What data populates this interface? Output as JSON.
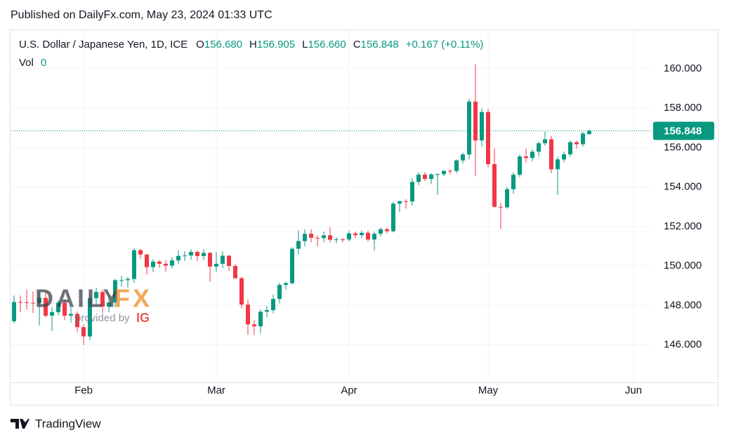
{
  "published": "Published on DailyFx.com, May 23, 2024 01:33 UTC",
  "footer": "TradingView",
  "watermark": {
    "brand_a": "DAILY",
    "brand_b": "FX",
    "provided": "provided by",
    "ig": "IG"
  },
  "chart_data": {
    "type": "candlestick",
    "legend": {
      "symbol": "U.S. Dollar / Japanese Yen, 1D, ICE",
      "o_label": "O",
      "o": "156.680",
      "h_label": "H",
      "h": "156.905",
      "l_label": "L",
      "l": "156.660",
      "c_label": "C",
      "c": "156.848",
      "change": "+0.167 (+0.11%)",
      "vol_label": "Vol",
      "vol": "0"
    },
    "up_color": "#089981",
    "down_color": "#f23645",
    "categories": [
      null,
      null,
      null,
      null,
      null,
      null,
      null,
      null,
      null,
      null,
      null,
      "Feb",
      null,
      null,
      null,
      null,
      null,
      null,
      null,
      null,
      null,
      null,
      null,
      null,
      null,
      null,
      null,
      null,
      null,
      null,
      null,
      null,
      "Mar",
      null,
      null,
      null,
      null,
      null,
      null,
      null,
      null,
      null,
      null,
      null,
      null,
      null,
      null,
      null,
      null,
      null,
      null,
      null,
      null,
      "Apr",
      null,
      null,
      null,
      null,
      null,
      null,
      null,
      null,
      null,
      null,
      null,
      null,
      null,
      null,
      null,
      null,
      null,
      null,
      null,
      null,
      null,
      "May",
      null,
      null,
      null,
      null,
      null,
      null,
      null,
      null,
      null,
      null,
      null,
      null,
      null,
      null,
      null,
      null,
      null,
      null,
      null,
      null,
      null,
      null,
      "Jun"
    ],
    "open": [
      147.2,
      148.17,
      148.16,
      148.13,
      148.12,
      148.38,
      147.48,
      147.66,
      148.14,
      147.48,
      147.57,
      146.9,
      146.43,
      148.37,
      148.68,
      147.94,
      148.15,
      149.28,
      149.28,
      149.34,
      150.8,
      150.58,
      149.94,
      150.22,
      150.11,
      150.02,
      150.28,
      150.51,
      150.53,
      150.71,
      150.5,
      150.66,
      149.97,
      150.11,
      150.52,
      150.0,
      149.38,
      148.04,
      147.04,
      146.94,
      147.68,
      147.76,
      148.33,
      149.04,
      149.13,
      150.87,
      151.26,
      151.63,
      151.43,
      151.41,
      151.55,
      151.33,
      151.35,
      151.34,
      151.65,
      151.56,
      151.68,
      151.34,
      151.63,
      151.86,
      151.76,
      153.16,
      153.28,
      153.27,
      154.26,
      154.63,
      154.41,
      154.64,
      154.65,
      154.82,
      154.81,
      155.35,
      155.65,
      158.33,
      156.36,
      157.8,
      155.16,
      153.0,
      152.97,
      153.89,
      154.62,
      155.55,
      155.47,
      155.79,
      156.22,
      156.42,
      154.9,
      155.4,
      155.66,
      156.27,
      156.17,
      156.68,
      null,
      null,
      null,
      null,
      null,
      null,
      null
    ],
    "high": [
      148.5,
      148.5,
      148.8,
      148.7,
      148.7,
      148.7,
      147.9,
      148.25,
      148.3,
      147.9,
      147.7,
      147.05,
      148.58,
      148.9,
      148.8,
      148.4,
      149.35,
      149.5,
      149.45,
      150.9,
      150.88,
      150.6,
      150.35,
      150.3,
      150.3,
      150.45,
      150.8,
      150.75,
      150.84,
      150.78,
      150.85,
      150.7,
      150.7,
      150.75,
      150.55,
      150.1,
      149.45,
      148.3,
      147.25,
      147.8,
      147.95,
      148.55,
      149.15,
      149.2,
      150.95,
      151.8,
      151.86,
      151.85,
      151.55,
      151.75,
      151.97,
      151.45,
      151.42,
      151.8,
      151.75,
      151.8,
      151.8,
      151.75,
      151.95,
      151.95,
      153.25,
      153.3,
      153.38,
      154.45,
      154.75,
      154.75,
      154.7,
      154.7,
      154.85,
      154.9,
      155.4,
      155.75,
      158.45,
      160.22,
      157.98,
      157.98,
      155.95,
      153.2,
      154.0,
      154.75,
      155.65,
      155.95,
      155.9,
      156.3,
      156.8,
      156.6,
      155.55,
      155.8,
      156.35,
      156.35,
      156.8,
      156.905,
      null,
      null,
      null,
      null,
      null,
      null,
      null
    ],
    "low": [
      147.1,
      147.65,
      147.8,
      147.62,
      146.98,
      147.4,
      146.7,
      147.5,
      147.25,
      147.13,
      146.65,
      146.0,
      146.25,
      148.0,
      147.62,
      147.65,
      147.9,
      148.95,
      148.9,
      149.15,
      150.35,
      149.55,
      149.7,
      149.9,
      149.7,
      149.9,
      150.1,
      150.25,
      150.3,
      150.25,
      150.3,
      149.2,
      149.7,
      149.9,
      149.75,
      149.35,
      147.85,
      146.5,
      146.5,
      146.6,
      147.4,
      147.6,
      148.1,
      148.8,
      149.05,
      150.6,
      151.0,
      151.2,
      151.0,
      151.2,
      151.2,
      151.15,
      151.2,
      151.25,
      151.4,
      151.4,
      151.25,
      150.8,
      151.5,
      151.65,
      151.7,
      152.75,
      152.9,
      153.05,
      154.1,
      154.3,
      154.15,
      153.6,
      154.55,
      154.65,
      154.7,
      155.2,
      155.4,
      154.55,
      156.05,
      155.0,
      152.95,
      151.86,
      152.9,
      153.65,
      154.5,
      155.25,
      155.3,
      155.55,
      156.1,
      154.7,
      153.6,
      155.25,
      155.55,
      155.95,
      156.05,
      156.66,
      null,
      null,
      null,
      null,
      null,
      null,
      null
    ],
    "close": [
      148.17,
      148.16,
      148.13,
      148.12,
      148.38,
      147.48,
      147.66,
      148.14,
      147.48,
      147.57,
      146.9,
      146.43,
      148.37,
      148.68,
      147.94,
      148.15,
      149.28,
      149.28,
      149.34,
      150.8,
      150.58,
      149.94,
      150.22,
      150.11,
      150.02,
      150.28,
      150.51,
      150.53,
      150.71,
      150.5,
      150.66,
      149.97,
      150.11,
      150.52,
      150.0,
      149.38,
      148.04,
      147.04,
      146.94,
      147.68,
      147.76,
      148.33,
      149.04,
      149.13,
      150.87,
      151.26,
      151.63,
      151.43,
      151.41,
      151.55,
      151.33,
      151.35,
      151.34,
      151.65,
      151.56,
      151.68,
      151.34,
      151.63,
      151.86,
      151.76,
      153.16,
      153.28,
      153.27,
      154.26,
      154.63,
      154.41,
      154.64,
      154.65,
      154.82,
      154.81,
      155.35,
      155.65,
      158.33,
      156.36,
      157.8,
      155.16,
      153.0,
      152.97,
      153.89,
      154.62,
      155.55,
      155.47,
      155.79,
      156.22,
      156.42,
      154.9,
      155.4,
      155.66,
      156.27,
      156.17,
      156.71,
      156.848,
      null,
      null,
      null,
      null,
      null,
      null,
      null
    ],
    "ylim": [
      144.1,
      161.95
    ],
    "yticks": [
      {
        "value": 146,
        "label": "146.000"
      },
      {
        "value": 148,
        "label": "148.000"
      },
      {
        "value": 150,
        "label": "150.000"
      },
      {
        "value": 152,
        "label": "152.000"
      },
      {
        "value": 154,
        "label": "154.000"
      },
      {
        "value": 156,
        "label": "156.000"
      },
      {
        "value": 158,
        "label": "158.000"
      },
      {
        "value": 160,
        "label": "160.000"
      }
    ],
    "last_price": {
      "value": 156.848,
      "label": "156.848"
    },
    "grid": true
  }
}
